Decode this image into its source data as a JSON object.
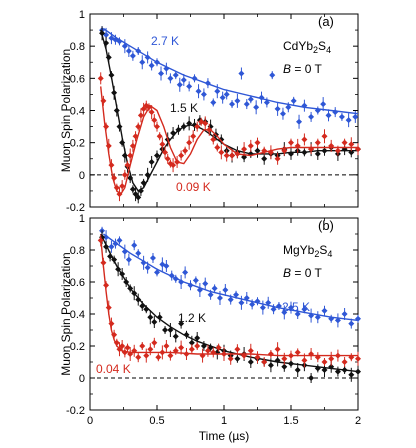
{
  "chart_data": [
    {
      "type": "scatter",
      "panel_label": "(a)",
      "compound_main": "CdYb",
      "compound_sub1": "2",
      "compound_mid": "S",
      "compound_sub2": "4",
      "field_var": "B",
      "field_rest": " = 0 T",
      "xlabel": "Time (µs)",
      "ylabel": "Muon Spin Polarization",
      "xlim": [
        0,
        2
      ],
      "ylim": [
        -0.2,
        1.0
      ],
      "xticks": [
        "0",
        "0.5",
        "1",
        "1.5",
        "2"
      ],
      "yticks": [
        "-0.2",
        "0",
        "0.2",
        "0.4",
        "0.6",
        "0.8",
        "1"
      ],
      "colors": {
        "2.7 K": "#2f57d6",
        "1.5 K": "#111111",
        "0.09 K": "#d42a1e"
      },
      "zero_line": true,
      "series": [
        {
          "name": "2.7 K",
          "color": "#2f57d6",
          "x": [
            0.09,
            0.12,
            0.16,
            0.19,
            0.22,
            0.26,
            0.29,
            0.32,
            0.36,
            0.39,
            0.43,
            0.46,
            0.5,
            0.53,
            0.57,
            0.6,
            0.64,
            0.67,
            0.7,
            0.74,
            0.78,
            0.81,
            0.85,
            0.88,
            0.92,
            0.95,
            0.99,
            1.02,
            1.06,
            1.1,
            1.13,
            1.17,
            1.2,
            1.24,
            1.28,
            1.32,
            1.36,
            1.4,
            1.44,
            1.48,
            1.52,
            1.56,
            1.6,
            1.65,
            1.7,
            1.74,
            1.78,
            1.83,
            1.88,
            1.93,
            1.98
          ],
          "y": [
            0.9,
            0.87,
            0.85,
            0.84,
            0.83,
            0.8,
            0.77,
            0.74,
            0.77,
            0.7,
            0.73,
            0.68,
            0.7,
            0.63,
            0.66,
            0.6,
            0.62,
            0.56,
            0.59,
            0.55,
            0.6,
            0.52,
            0.5,
            0.57,
            0.45,
            0.52,
            0.48,
            0.5,
            0.44,
            0.46,
            0.63,
            0.44,
            0.47,
            0.42,
            0.48,
            0.45,
            0.62,
            0.41,
            0.38,
            0.42,
            0.46,
            0.33,
            0.43,
            0.36,
            0.4,
            0.44,
            0.37,
            0.39,
            0.36,
            0.34,
            0.36
          ],
          "fit_x": [
            0.1,
            0.2,
            0.3,
            0.4,
            0.5,
            0.6,
            0.7,
            0.8,
            0.9,
            1.0,
            1.2,
            1.4,
            1.6,
            1.8,
            2.0
          ],
          "fit_y": [
            0.91,
            0.85,
            0.8,
            0.75,
            0.7,
            0.66,
            0.62,
            0.59,
            0.56,
            0.53,
            0.49,
            0.45,
            0.42,
            0.4,
            0.38
          ]
        },
        {
          "name": "1.5 K",
          "color": "#111111",
          "x": [
            0.09,
            0.12,
            0.14,
            0.16,
            0.18,
            0.2,
            0.22,
            0.24,
            0.26,
            0.28,
            0.3,
            0.32,
            0.34,
            0.36,
            0.38,
            0.4,
            0.43,
            0.46,
            0.5,
            0.54,
            0.58,
            0.62,
            0.66,
            0.7,
            0.74,
            0.78,
            0.82,
            0.86,
            0.9,
            0.94,
            0.98,
            1.02,
            1.06,
            1.1,
            1.15,
            1.2,
            1.25,
            1.3,
            1.35,
            1.4,
            1.45,
            1.5,
            1.55,
            1.6,
            1.65,
            1.7,
            1.75,
            1.8,
            1.85,
            1.9,
            1.95,
            2.0
          ],
          "y": [
            0.88,
            0.82,
            0.73,
            0.62,
            0.51,
            0.4,
            0.3,
            0.2,
            0.12,
            0.05,
            -0.02,
            -0.09,
            -0.12,
            -0.14,
            -0.1,
            -0.05,
            0.0,
            0.08,
            0.12,
            0.16,
            0.22,
            0.26,
            0.28,
            0.3,
            0.32,
            0.31,
            0.34,
            0.33,
            0.3,
            0.25,
            0.22,
            0.15,
            0.12,
            0.14,
            0.11,
            0.13,
            0.15,
            0.1,
            0.13,
            0.12,
            0.16,
            0.13,
            0.15,
            0.14,
            0.16,
            0.13,
            0.15,
            0.17,
            0.13,
            0.16,
            0.14,
            0.16
          ],
          "fit_x": [
            0.08,
            0.12,
            0.16,
            0.2,
            0.24,
            0.28,
            0.32,
            0.36,
            0.4,
            0.45,
            0.5,
            0.55,
            0.6,
            0.65,
            0.7,
            0.75,
            0.8,
            0.85,
            0.9,
            0.95,
            1.0,
            1.05,
            1.1,
            1.2,
            1.3,
            1.4,
            1.5,
            1.6,
            1.7,
            1.8,
            1.9,
            2.0
          ],
          "fit_y": [
            0.9,
            0.78,
            0.61,
            0.42,
            0.23,
            0.07,
            -0.05,
            -0.1,
            -0.08,
            0.0,
            0.08,
            0.16,
            0.22,
            0.27,
            0.3,
            0.31,
            0.3,
            0.28,
            0.25,
            0.22,
            0.19,
            0.17,
            0.15,
            0.13,
            0.13,
            0.13,
            0.14,
            0.14,
            0.15,
            0.15,
            0.15,
            0.15
          ]
        },
        {
          "name": "0.09 K",
          "color": "#d42a1e",
          "x": [
            0.08,
            0.1,
            0.12,
            0.14,
            0.16,
            0.18,
            0.2,
            0.22,
            0.24,
            0.26,
            0.28,
            0.3,
            0.32,
            0.34,
            0.36,
            0.38,
            0.4,
            0.42,
            0.44,
            0.46,
            0.48,
            0.5,
            0.52,
            0.54,
            0.56,
            0.58,
            0.6,
            0.62,
            0.65,
            0.68,
            0.71,
            0.74,
            0.77,
            0.8,
            0.83,
            0.86,
            0.89,
            0.92,
            0.95,
            0.98,
            1.02,
            1.06,
            1.1,
            1.15,
            1.2,
            1.25,
            1.3,
            1.35,
            1.4,
            1.45,
            1.5,
            1.55,
            1.6,
            1.65,
            1.7,
            1.75,
            1.8,
            1.85,
            1.9,
            1.95,
            2.0
          ],
          "y": [
            0.6,
            0.46,
            0.3,
            0.18,
            0.06,
            -0.02,
            -0.08,
            -0.12,
            -0.07,
            0.0,
            0.06,
            0.12,
            0.18,
            0.24,
            0.3,
            0.37,
            0.41,
            0.43,
            0.42,
            0.39,
            0.34,
            0.3,
            0.24,
            0.19,
            0.14,
            0.1,
            0.07,
            0.06,
            0.08,
            0.12,
            0.15,
            0.2,
            0.24,
            0.3,
            0.33,
            0.32,
            0.28,
            0.22,
            0.17,
            0.14,
            0.12,
            0.12,
            0.13,
            0.16,
            0.18,
            0.2,
            0.15,
            0.14,
            0.1,
            0.15,
            0.2,
            0.18,
            0.22,
            0.16,
            0.2,
            0.24,
            0.18,
            0.15,
            0.2,
            0.19,
            0.16
          ],
          "fit_x": [
            0.08,
            0.11,
            0.14,
            0.17,
            0.2,
            0.23,
            0.26,
            0.3,
            0.35,
            0.4,
            0.45,
            0.5,
            0.55,
            0.6,
            0.65,
            0.7,
            0.75,
            0.8,
            0.85,
            0.9,
            0.95,
            1.0,
            1.1,
            1.2,
            1.3,
            1.4,
            1.5,
            1.6,
            1.7,
            1.8,
            1.9,
            2.0
          ],
          "fit_y": [
            0.55,
            0.32,
            0.13,
            -0.02,
            -0.1,
            -0.12,
            -0.08,
            0.06,
            0.22,
            0.36,
            0.43,
            0.4,
            0.3,
            0.17,
            0.08,
            0.07,
            0.13,
            0.22,
            0.28,
            0.28,
            0.24,
            0.19,
            0.13,
            0.12,
            0.14,
            0.16,
            0.17,
            0.17,
            0.17,
            0.17,
            0.17,
            0.17
          ]
        }
      ]
    },
    {
      "type": "scatter",
      "panel_label": "(b)",
      "compound_main": "MgYb",
      "compound_sub1": "2",
      "compound_mid": "S",
      "compound_sub2": "4",
      "field_var": "B",
      "field_rest": " = 0 T",
      "xlabel": "Time (µs)",
      "ylabel": "Muon Spin Polarization",
      "xlim": [
        0,
        2
      ],
      "ylim": [
        -0.2,
        1.0
      ],
      "xticks": [
        "0",
        "0.5",
        "1",
        "1.5",
        "2"
      ],
      "yticks": [
        "-0.2",
        "0",
        "0.2",
        "0.4",
        "0.6",
        "0.8",
        "1"
      ],
      "colors": {
        "2.5 K": "#2f57d6",
        "1.2 K": "#111111",
        "0.04 K": "#d42a1e"
      },
      "zero_line": true,
      "series": [
        {
          "name": "2.5 K",
          "color": "#2f57d6",
          "x": [
            0.09,
            0.12,
            0.16,
            0.19,
            0.22,
            0.26,
            0.29,
            0.33,
            0.36,
            0.4,
            0.43,
            0.47,
            0.5,
            0.54,
            0.57,
            0.61,
            0.64,
            0.68,
            0.71,
            0.75,
            0.79,
            0.82,
            0.86,
            0.9,
            0.93,
            0.97,
            1.01,
            1.05,
            1.09,
            1.13,
            1.17,
            1.21,
            1.25,
            1.29,
            1.33,
            1.37,
            1.41,
            1.45,
            1.5,
            1.55,
            1.6,
            1.65,
            1.7,
            1.75,
            1.8,
            1.85,
            1.9,
            1.95,
            2.0
          ],
          "y": [
            0.92,
            0.88,
            0.82,
            0.84,
            0.86,
            0.79,
            0.74,
            0.83,
            0.78,
            0.72,
            0.69,
            0.75,
            0.66,
            0.71,
            0.7,
            0.64,
            0.62,
            0.6,
            0.66,
            0.58,
            0.61,
            0.55,
            0.59,
            0.52,
            0.56,
            0.5,
            0.55,
            0.49,
            0.52,
            0.47,
            0.5,
            0.46,
            0.48,
            0.44,
            0.47,
            0.43,
            0.45,
            0.41,
            0.44,
            0.4,
            0.43,
            0.39,
            0.38,
            0.42,
            0.37,
            0.36,
            0.4,
            0.34,
            0.37
          ],
          "fit_x": [
            0.1,
            0.2,
            0.3,
            0.4,
            0.5,
            0.6,
            0.7,
            0.8,
            0.9,
            1.0,
            1.2,
            1.4,
            1.6,
            1.8,
            2.0
          ],
          "fit_y": [
            0.9,
            0.84,
            0.78,
            0.73,
            0.68,
            0.64,
            0.6,
            0.57,
            0.54,
            0.52,
            0.48,
            0.44,
            0.41,
            0.38,
            0.36
          ]
        },
        {
          "name": "1.2 K",
          "color": "#111111",
          "x": [
            0.09,
            0.12,
            0.15,
            0.18,
            0.21,
            0.24,
            0.27,
            0.3,
            0.33,
            0.36,
            0.39,
            0.42,
            0.45,
            0.48,
            0.52,
            0.56,
            0.6,
            0.64,
            0.68,
            0.72,
            0.76,
            0.8,
            0.85,
            0.9,
            0.95,
            1.0,
            1.05,
            1.1,
            1.15,
            1.2,
            1.25,
            1.3,
            1.35,
            1.4,
            1.45,
            1.5,
            1.55,
            1.6,
            1.65,
            1.7,
            1.75,
            1.8,
            1.85,
            1.9,
            1.95,
            2.0
          ],
          "y": [
            0.88,
            0.82,
            0.76,
            0.74,
            0.68,
            0.65,
            0.6,
            0.56,
            0.53,
            0.49,
            0.45,
            0.43,
            0.38,
            0.35,
            0.38,
            0.3,
            0.3,
            0.26,
            0.34,
            0.27,
            0.22,
            0.25,
            0.2,
            0.19,
            0.16,
            0.17,
            0.14,
            0.12,
            0.15,
            0.1,
            0.12,
            0.1,
            0.08,
            0.11,
            0.07,
            0.09,
            0.05,
            0.08,
            0.0,
            0.06,
            0.05,
            0.07,
            0.04,
            0.05,
            0.02,
            0.04
          ],
          "fit_x": [
            0.08,
            0.15,
            0.2,
            0.25,
            0.3,
            0.4,
            0.5,
            0.6,
            0.7,
            0.8,
            0.9,
            1.0,
            1.2,
            1.4,
            1.6,
            1.8,
            2.0
          ],
          "fit_y": [
            0.9,
            0.78,
            0.7,
            0.63,
            0.56,
            0.46,
            0.38,
            0.32,
            0.27,
            0.23,
            0.2,
            0.17,
            0.13,
            0.1,
            0.08,
            0.06,
            0.04
          ]
        },
        {
          "name": "0.04 K",
          "color": "#d42a1e",
          "x": [
            0.08,
            0.1,
            0.12,
            0.14,
            0.16,
            0.18,
            0.2,
            0.22,
            0.24,
            0.26,
            0.28,
            0.3,
            0.33,
            0.36,
            0.39,
            0.42,
            0.45,
            0.48,
            0.51,
            0.54,
            0.57,
            0.6,
            0.64,
            0.68,
            0.72,
            0.76,
            0.8,
            0.84,
            0.88,
            0.92,
            0.96,
            1.0,
            1.05,
            1.1,
            1.15,
            1.2,
            1.25,
            1.3,
            1.35,
            1.4,
            1.45,
            1.5,
            1.55,
            1.6,
            1.65,
            1.7,
            1.75,
            1.8,
            1.85,
            1.9,
            1.95,
            2.0
          ],
          "y": [
            0.86,
            0.72,
            0.58,
            0.44,
            0.34,
            0.27,
            0.22,
            0.18,
            0.2,
            0.16,
            0.19,
            0.15,
            0.17,
            0.13,
            0.2,
            0.14,
            0.18,
            0.22,
            0.13,
            0.16,
            0.2,
            0.14,
            0.17,
            0.19,
            0.15,
            0.18,
            0.2,
            0.14,
            0.17,
            0.16,
            0.19,
            0.15,
            0.12,
            0.18,
            0.14,
            0.17,
            0.13,
            0.1,
            0.15,
            0.18,
            0.12,
            0.14,
            0.16,
            0.11,
            0.15,
            0.13,
            0.1,
            0.12,
            0.14,
            0.1,
            0.13,
            0.12
          ],
          "fit_x": [
            0.08,
            0.1,
            0.12,
            0.14,
            0.16,
            0.18,
            0.2,
            0.24,
            0.3,
            0.4,
            0.5,
            0.6,
            0.8,
            1.0,
            1.2,
            1.4,
            1.6,
            1.8,
            2.0
          ],
          "fit_y": [
            0.88,
            0.7,
            0.54,
            0.4,
            0.3,
            0.24,
            0.2,
            0.17,
            0.16,
            0.16,
            0.16,
            0.16,
            0.15,
            0.15,
            0.15,
            0.14,
            0.14,
            0.14,
            0.14
          ]
        }
      ]
    }
  ],
  "labels": {
    "a": [
      {
        "text": "2.7 K",
        "series": "2.7 K"
      },
      {
        "text": "1.5 K",
        "series": "1.5 K"
      },
      {
        "text": "0.09 K",
        "series": "0.09 K"
      }
    ],
    "b": [
      {
        "text": "2.5 K",
        "series": "2.5 K"
      },
      {
        "text": "1.2 K",
        "series": "1.2 K"
      },
      {
        "text": "0.04 K",
        "series": "0.04 K"
      }
    ]
  }
}
